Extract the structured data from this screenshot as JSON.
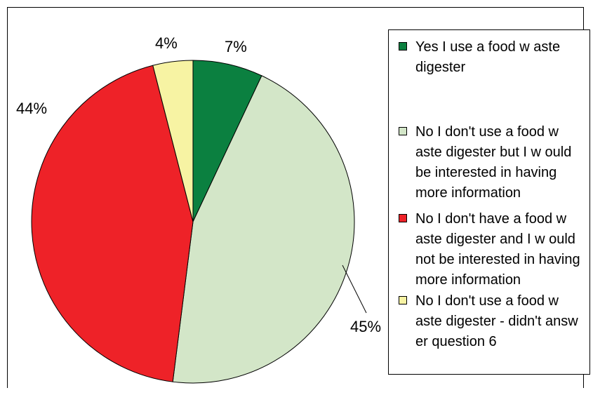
{
  "chart_data": {
    "type": "pie",
    "slices": [
      {
        "label": "Yes I use a food w aste digester",
        "value": 7,
        "display": "7%",
        "color": "#0B8040"
      },
      {
        "label": "No I don't use a food w aste digester but I w ould be interested in having more information",
        "value": 45,
        "display": "45%",
        "color": "#D3E6C8"
      },
      {
        "label": "No I don't have a food w aste digester and I w ould not be interested in having more information",
        "value": 44,
        "display": "44%",
        "color": "#EE2228"
      },
      {
        "label": "No I don't use a food w aste digester - didn't answ er question 6",
        "value": 4,
        "display": "4%",
        "color": "#F7F3A3"
      }
    ],
    "start_angle": "12 o'clock",
    "direction": "clockwise",
    "legend": "right"
  }
}
